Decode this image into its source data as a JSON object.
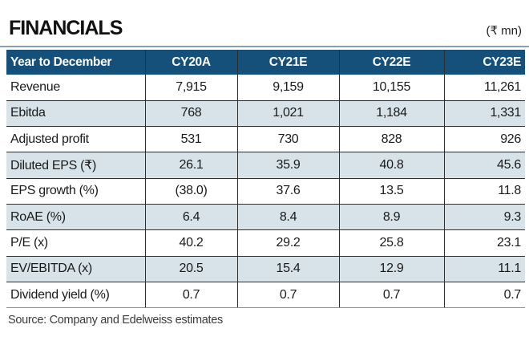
{
  "title": "FINANCIALS",
  "unit_label": "(₹ mn)",
  "source_note": "Source: Company and Edelweiss estimates",
  "colors": {
    "header_bg": "#15507A",
    "header_text": "#FFFFFF",
    "stripe_bg": "#D7E2E9",
    "grid_line": "#2E2E2E",
    "top_rule": "#8AA0AE",
    "bottom_rule": "#8F8F8F"
  },
  "table": {
    "columns": [
      "Year to December",
      "CY20A",
      "CY21E",
      "CY22E",
      "CY23E"
    ],
    "rows": [
      {
        "label": "Revenue",
        "values": [
          "7,915",
          "9,159",
          "10,155",
          "11,261"
        ]
      },
      {
        "label": "Ebitda",
        "values": [
          "768",
          "1,021",
          "1,184",
          "1,331"
        ]
      },
      {
        "label": "Adjusted profit",
        "values": [
          "531",
          "730",
          "828",
          "926"
        ]
      },
      {
        "label": "Diluted EPS (₹)",
        "values": [
          "26.1",
          "35.9",
          "40.8",
          "45.6"
        ]
      },
      {
        "label": "EPS growth (%)",
        "values": [
          "(38.0)",
          "37.6",
          "13.5",
          "11.8"
        ]
      },
      {
        "label": "RoAE (%)",
        "values": [
          "6.4",
          "8.4",
          "8.9",
          "9.3"
        ]
      },
      {
        "label": "P/E (x)",
        "values": [
          "40.2",
          "29.2",
          "25.8",
          "23.1"
        ]
      },
      {
        "label": "EV/EBITDA (x)",
        "values": [
          "20.5",
          "15.4",
          "12.9",
          "11.1"
        ]
      },
      {
        "label": "Dividend yield (%)",
        "values": [
          "0.7",
          "0.7",
          "0.7",
          "0.7"
        ]
      }
    ]
  }
}
